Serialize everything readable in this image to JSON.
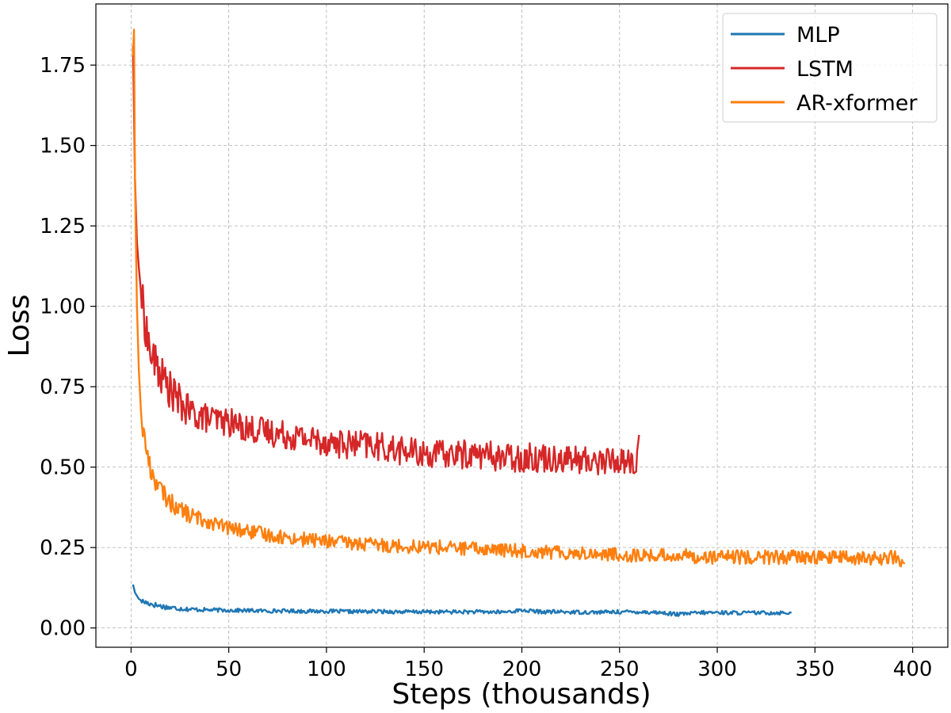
{
  "chart_data": {
    "type": "line",
    "title": "",
    "xlabel": "Steps (thousands)",
    "ylabel": "Loss",
    "xlim": [
      -18,
      418
    ],
    "ylim": [
      -0.06,
      1.94
    ],
    "xticks": [
      0,
      50,
      100,
      150,
      200,
      250,
      300,
      350,
      400
    ],
    "yticks": [
      0.0,
      0.25,
      0.5,
      0.75,
      1.0,
      1.25,
      1.5,
      1.75
    ],
    "xtick_labels": [
      "0",
      "50",
      "100",
      "150",
      "200",
      "250",
      "300",
      "350",
      "400"
    ],
    "ytick_labels": [
      "0.00",
      "0.25",
      "0.50",
      "0.75",
      "1.00",
      "1.25",
      "1.50",
      "1.75"
    ],
    "grid": true,
    "legend_position": "top-right",
    "series": [
      {
        "name": "MLP",
        "color": "#1f77b4",
        "x": [
          1,
          2,
          4,
          6,
          10,
          15,
          20,
          30,
          40,
          50,
          60,
          70,
          80,
          90,
          100,
          110,
          120,
          130,
          140,
          150,
          160,
          170,
          180,
          190,
          200,
          210,
          220,
          230,
          240,
          250,
          260,
          270,
          280,
          290,
          300,
          310,
          320,
          330,
          338
        ],
        "y": [
          0.135,
          0.11,
          0.09,
          0.082,
          0.075,
          0.068,
          0.063,
          0.058,
          0.056,
          0.055,
          0.054,
          0.053,
          0.053,
          0.052,
          0.052,
          0.051,
          0.051,
          0.051,
          0.05,
          0.05,
          0.05,
          0.05,
          0.05,
          0.049,
          0.055,
          0.05,
          0.05,
          0.049,
          0.049,
          0.05,
          0.05,
          0.048,
          0.042,
          0.047,
          0.048,
          0.047,
          0.047,
          0.047,
          0.048
        ]
      },
      {
        "name": "LSTM",
        "color": "#d62728",
        "x": [
          1,
          2,
          3,
          4,
          5,
          6,
          8,
          10,
          15,
          20,
          25,
          30,
          40,
          50,
          60,
          70,
          80,
          90,
          100,
          110,
          120,
          130,
          140,
          150,
          160,
          170,
          180,
          190,
          200,
          210,
          220,
          230,
          240,
          250,
          255,
          258,
          260
        ],
        "y": [
          1.81,
          1.4,
          1.2,
          1.12,
          1.05,
          1.0,
          0.92,
          0.85,
          0.79,
          0.74,
          0.7,
          0.67,
          0.65,
          0.64,
          0.62,
          0.61,
          0.6,
          0.59,
          0.58,
          0.57,
          0.57,
          0.56,
          0.55,
          0.54,
          0.54,
          0.54,
          0.54,
          0.53,
          0.53,
          0.53,
          0.53,
          0.52,
          0.52,
          0.52,
          0.52,
          0.5,
          0.6
        ]
      },
      {
        "name": "AR-xformer",
        "color": "#ff7f0e",
        "x": [
          1,
          1.5,
          2,
          3,
          4,
          5,
          6,
          8,
          10,
          15,
          20,
          25,
          30,
          40,
          50,
          60,
          70,
          80,
          90,
          100,
          120,
          140,
          160,
          180,
          200,
          220,
          240,
          260,
          280,
          300,
          320,
          340,
          360,
          380,
          390,
          396
        ],
        "y": [
          1.78,
          1.86,
          1.4,
          1.0,
          0.8,
          0.68,
          0.62,
          0.55,
          0.49,
          0.43,
          0.39,
          0.37,
          0.35,
          0.33,
          0.31,
          0.3,
          0.29,
          0.28,
          0.275,
          0.27,
          0.26,
          0.255,
          0.25,
          0.245,
          0.24,
          0.235,
          0.23,
          0.225,
          0.225,
          0.22,
          0.22,
          0.22,
          0.22,
          0.215,
          0.22,
          0.2
        ]
      }
    ]
  }
}
